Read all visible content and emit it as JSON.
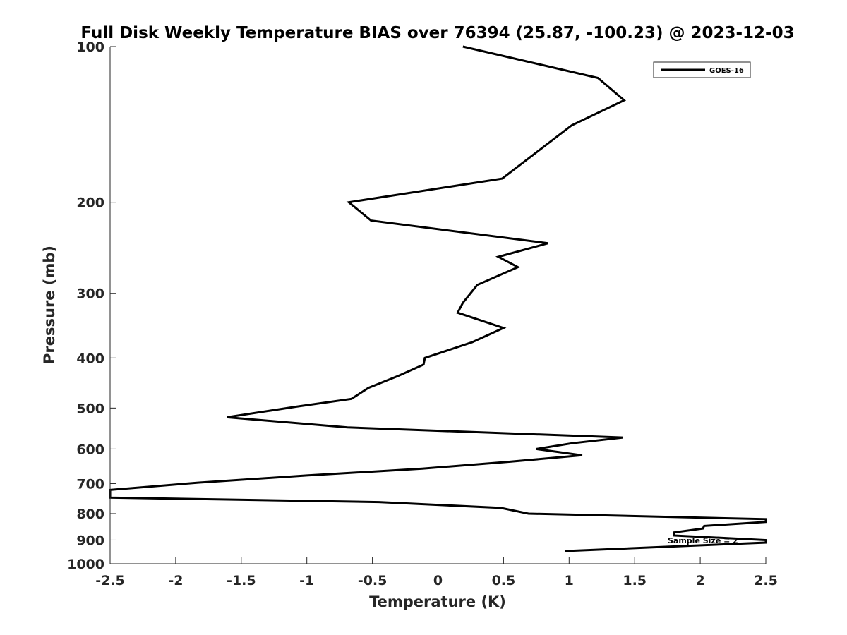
{
  "chart_data": {
    "type": "line",
    "title": "Full Disk Weekly Temperature BIAS over 76394 (25.87, -100.23) @ 2023-12-03",
    "xlabel": "Temperature (K)",
    "ylabel": "Pressure (mb)",
    "xlim": [
      -2.5,
      2.5
    ],
    "ylim": [
      100,
      1000
    ],
    "yscale": "log",
    "y_reversed": true,
    "x_ticks": [
      "-2.5",
      "-2",
      "-1.5",
      "-1",
      "-0.5",
      "0",
      "0.5",
      "1",
      "1.5",
      "2",
      "2.5"
    ],
    "y_ticks": [
      "100",
      "200",
      "300",
      "400",
      "500",
      "600",
      "700",
      "800",
      "900",
      "1000"
    ],
    "grid": false,
    "legend": {
      "position": "top-right",
      "entries": [
        "GOES-16"
      ]
    },
    "annotation": "Sample Size = 2",
    "series": [
      {
        "name": "GOES-16",
        "color": "#000000",
        "x": [
          0.19,
          1.22,
          1.42,
          1.02,
          0.49,
          -0.68,
          -0.51,
          0.84,
          0.46,
          0.61,
          0.3,
          0.19,
          0.15,
          0.5,
          0.26,
          -0.1,
          -0.11,
          -0.3,
          -0.53,
          -0.66,
          -1.08,
          -1.61,
          -0.69,
          1.41,
          1.02,
          0.75,
          1.1,
          0.55,
          -0.12,
          -1.0,
          -1.83,
          -2.5,
          -2.5,
          -0.45,
          0.48,
          0.69,
          2.5,
          2.5,
          2.03,
          2.02,
          1.8,
          1.8,
          2.5,
          2.5,
          0.97
        ],
        "y": [
          100,
          115,
          127,
          142,
          180,
          200,
          217,
          240,
          255,
          267,
          289,
          313,
          327,
          350,
          373,
          400,
          412,
          433,
          457,
          480,
          497,
          521,
          545,
          570,
          585,
          600,
          617,
          635,
          655,
          675,
          697,
          720,
          745,
          760,
          780,
          800,
          820,
          830,
          845,
          855,
          870,
          882,
          900,
          910,
          945
        ]
      }
    ]
  }
}
